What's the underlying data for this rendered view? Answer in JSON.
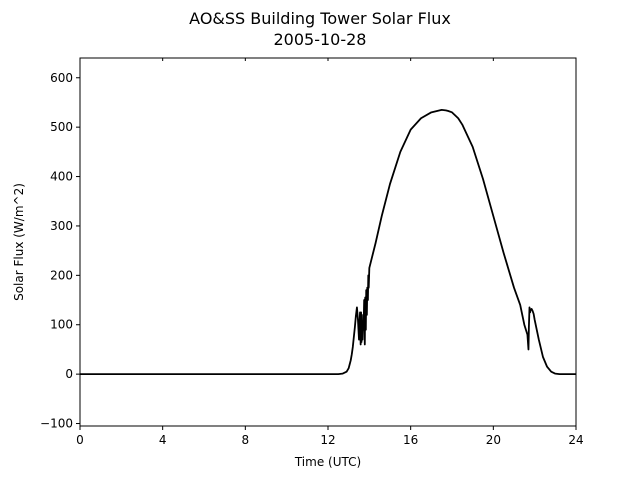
{
  "chart_data": {
    "type": "line",
    "title": "AO&SS Building Tower Solar Flux",
    "subtitle": "2005-10-28",
    "xlabel": "Time (UTC)",
    "ylabel": "Solar Flux (W/m^2)",
    "xlim": [
      0,
      24
    ],
    "ylim": [
      -105,
      640
    ],
    "xticks": [
      0,
      4,
      8,
      12,
      16,
      20,
      24
    ],
    "xtick_labels": [
      "0",
      "4",
      "8",
      "12",
      "16",
      "20",
      "24"
    ],
    "yticks": [
      -100,
      0,
      100,
      200,
      300,
      400,
      500,
      600
    ],
    "ytick_labels": [
      "−100",
      "0",
      "100",
      "200",
      "300",
      "400",
      "500",
      "600"
    ],
    "grid": false,
    "legend": "none",
    "line_color": "#000000",
    "series": [
      {
        "x": [
          0,
          12.0,
          12.3,
          12.5,
          12.7,
          12.9,
          13.0,
          13.05,
          13.1,
          13.15,
          13.2,
          13.25,
          13.3,
          13.35,
          13.4,
          13.45,
          13.5,
          13.55,
          13.58,
          13.6,
          13.62,
          13.65,
          13.67,
          13.7,
          13.72,
          13.75,
          13.78,
          13.8,
          13.83,
          13.85,
          13.88,
          13.9,
          13.93,
          13.95,
          13.97,
          14.0,
          14.3,
          14.6,
          15.0,
          15.5,
          16.0,
          16.5,
          17.0,
          17.3,
          17.5,
          17.7,
          17.8,
          18.0,
          18.3,
          18.5,
          19.0,
          19.5,
          20.0,
          20.5,
          21.0,
          21.3,
          21.5,
          21.65,
          21.7,
          21.72,
          21.75,
          21.78,
          21.8,
          21.85,
          21.9,
          21.95,
          22.0,
          22.2,
          22.4,
          22.6,
          22.8,
          23.0,
          23.2,
          24.0
        ],
        "y": [
          0,
          0,
          0,
          0,
          1,
          5,
          12,
          20,
          28,
          40,
          55,
          75,
          95,
          118,
          135,
          110,
          70,
          125,
          60,
          125,
          65,
          95,
          70,
          120,
          90,
          150,
          60,
          155,
          90,
          170,
          120,
          175,
          150,
          200,
          175,
          215,
          265,
          320,
          385,
          450,
          495,
          518,
          530,
          533,
          535,
          534,
          533,
          530,
          518,
          505,
          460,
          395,
          320,
          245,
          175,
          140,
          100,
          80,
          50,
          95,
          135,
          125,
          130,
          132,
          128,
          122,
          110,
          70,
          35,
          15,
          5,
          1,
          0,
          0
        ]
      }
    ]
  }
}
